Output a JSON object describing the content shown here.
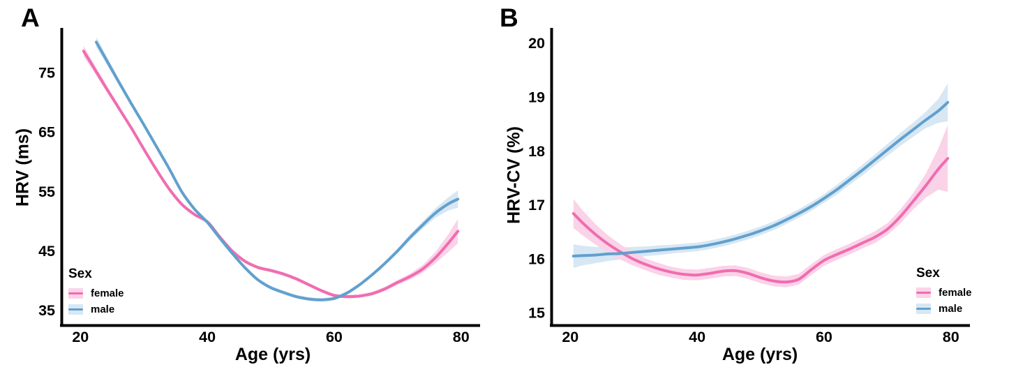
{
  "colors": {
    "female_line": "#F06CB0",
    "female_band": "#FAD3E8",
    "male_line": "#61A0CE",
    "male_band": "#D7E7F3",
    "axis": "#000000",
    "text": "#000000",
    "background": "#ffffff"
  },
  "legend": {
    "title": "Sex",
    "entries": [
      {
        "id": "female",
        "label": "female"
      },
      {
        "id": "male",
        "label": "male"
      }
    ]
  },
  "chart_data": [
    {
      "type": "line",
      "panel_label": "A",
      "title": "",
      "xlabel": "Age (yrs)",
      "ylabel": "HRV (ms)",
      "xlim": [
        17,
        83
      ],
      "ylim": [
        32.5,
        82.5
      ],
      "x_ticks": [
        20,
        40,
        60,
        80
      ],
      "y_ticks": [
        75,
        65,
        55,
        45,
        35
      ],
      "grid": false,
      "legend_position": "bottom-left",
      "series": [
        {
          "name": "female",
          "x": [
            20.5,
            22,
            24,
            26,
            28,
            30,
            32,
            34,
            36,
            38,
            40,
            42,
            44,
            46,
            48,
            50,
            52,
            54,
            56,
            58,
            60,
            62,
            64,
            66,
            68,
            70,
            72,
            74,
            76,
            78,
            79.5
          ],
          "y": [
            78.6,
            76.0,
            72.5,
            69.1,
            65.7,
            62.1,
            58.6,
            55.4,
            52.8,
            51.1,
            49.9,
            47.3,
            44.9,
            43.2,
            42.2,
            41.7,
            41.1,
            40.3,
            39.3,
            38.3,
            37.5,
            37.3,
            37.4,
            37.8,
            38.6,
            39.7,
            40.7,
            42.0,
            43.9,
            46.3,
            48.3
          ],
          "ci": [
            0.9,
            0.7,
            0.55,
            0.45,
            0.4,
            0.38,
            0.35,
            0.33,
            0.32,
            0.3,
            0.3,
            0.3,
            0.3,
            0.3,
            0.3,
            0.3,
            0.3,
            0.3,
            0.3,
            0.3,
            0.3,
            0.3,
            0.3,
            0.32,
            0.35,
            0.4,
            0.5,
            0.65,
            0.95,
            1.5,
            2.05
          ]
        },
        {
          "name": "male",
          "x": [
            22.5,
            24,
            26,
            28,
            30,
            32,
            34,
            36,
            38,
            40,
            42,
            44,
            46,
            48,
            50,
            52,
            54,
            56,
            58,
            60,
            62,
            64,
            66,
            68,
            70,
            72,
            74,
            76,
            78,
            79.5
          ],
          "y": [
            80.1,
            77.3,
            73.5,
            69.8,
            66.2,
            62.5,
            58.8,
            54.9,
            52.0,
            49.8,
            47.1,
            44.5,
            42.1,
            40.1,
            38.8,
            38.0,
            37.3,
            36.9,
            36.75,
            37.0,
            37.9,
            39.3,
            41.0,
            42.9,
            45.0,
            47.3,
            49.4,
            51.4,
            52.9,
            53.7
          ],
          "ci": [
            0.9,
            0.7,
            0.55,
            0.45,
            0.4,
            0.38,
            0.35,
            0.33,
            0.32,
            0.3,
            0.3,
            0.3,
            0.3,
            0.3,
            0.3,
            0.3,
            0.3,
            0.3,
            0.3,
            0.3,
            0.3,
            0.3,
            0.32,
            0.35,
            0.4,
            0.5,
            0.6,
            0.8,
            1.1,
            1.45
          ]
        }
      ]
    },
    {
      "type": "line",
      "panel_label": "B",
      "title": "",
      "xlabel": "Age (yrs)",
      "ylabel": "HRV-CV (%)",
      "xlim": [
        17,
        83
      ],
      "ylim": [
        14.77,
        20.28
      ],
      "x_ticks": [
        20,
        40,
        60,
        80
      ],
      "y_ticks": [
        20,
        19,
        18,
        17,
        16,
        15
      ],
      "grid": false,
      "legend_position": "bottom-right",
      "series": [
        {
          "name": "female",
          "x": [
            20.5,
            22,
            24,
            26,
            28,
            30,
            32,
            34,
            36,
            38,
            40,
            42,
            44,
            46,
            48,
            50,
            52,
            54,
            56,
            58,
            60,
            62,
            64,
            66,
            68,
            70,
            72,
            74,
            76,
            78,
            79.5
          ],
          "y": [
            16.84,
            16.66,
            16.45,
            16.27,
            16.12,
            15.99,
            15.89,
            15.81,
            15.75,
            15.71,
            15.7,
            15.73,
            15.77,
            15.78,
            15.73,
            15.65,
            15.59,
            15.57,
            15.62,
            15.8,
            15.97,
            16.08,
            16.18,
            16.29,
            16.4,
            16.55,
            16.78,
            17.06,
            17.35,
            17.66,
            17.86
          ],
          "ci": [
            0.27,
            0.23,
            0.19,
            0.16,
            0.14,
            0.12,
            0.11,
            0.11,
            0.1,
            0.1,
            0.1,
            0.1,
            0.1,
            0.1,
            0.1,
            0.1,
            0.1,
            0.1,
            0.1,
            0.1,
            0.1,
            0.1,
            0.1,
            0.1,
            0.11,
            0.11,
            0.13,
            0.15,
            0.22,
            0.38,
            0.62
          ]
        },
        {
          "name": "male",
          "x": [
            20.5,
            22,
            24,
            26,
            28,
            30,
            32,
            34,
            36,
            38,
            40,
            42,
            44,
            46,
            48,
            50,
            52,
            54,
            56,
            58,
            60,
            62,
            64,
            66,
            68,
            70,
            72,
            74,
            76,
            78,
            79.5
          ],
          "y": [
            16.05,
            16.06,
            16.07,
            16.09,
            16.1,
            16.12,
            16.14,
            16.16,
            16.18,
            16.2,
            16.22,
            16.26,
            16.31,
            16.37,
            16.44,
            16.52,
            16.61,
            16.72,
            16.84,
            16.97,
            17.12,
            17.28,
            17.46,
            17.64,
            17.83,
            18.02,
            18.21,
            18.39,
            18.57,
            18.74,
            18.9
          ],
          "ci": [
            0.22,
            0.18,
            0.15,
            0.13,
            0.11,
            0.1,
            0.09,
            0.09,
            0.08,
            0.08,
            0.08,
            0.08,
            0.08,
            0.08,
            0.08,
            0.08,
            0.08,
            0.08,
            0.08,
            0.08,
            0.08,
            0.09,
            0.09,
            0.1,
            0.1,
            0.11,
            0.12,
            0.13,
            0.15,
            0.22,
            0.35
          ]
        }
      ]
    }
  ]
}
